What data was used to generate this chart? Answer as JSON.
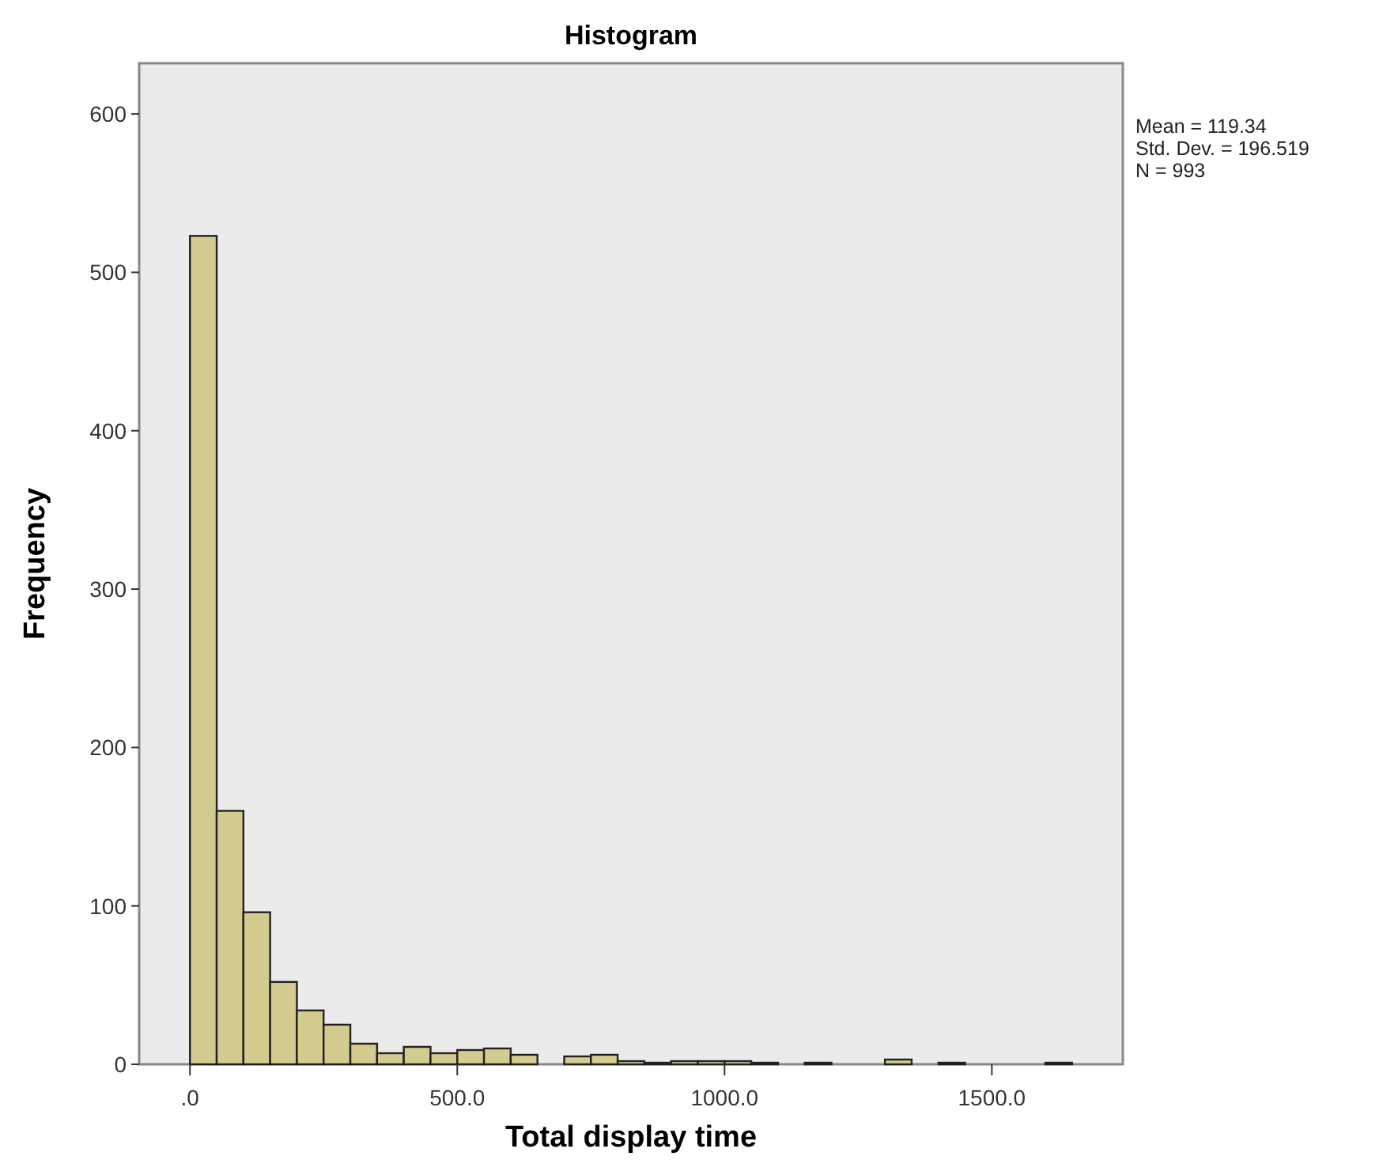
{
  "chart_data": {
    "type": "histogram",
    "title": "Histogram",
    "xlabel": "Total display time",
    "ylabel": "Frequency",
    "bins": [
      0,
      50,
      100,
      150,
      200,
      250,
      300,
      350,
      400,
      450,
      500,
      550,
      600,
      650,
      700,
      750,
      800,
      850,
      900,
      950,
      1000,
      1050,
      1100,
      1150,
      1200,
      1250,
      1300,
      1350,
      1400,
      1450,
      1500,
      1550,
      1600,
      1650
    ],
    "values": [
      523,
      160,
      96,
      52,
      34,
      25,
      13,
      7,
      11,
      7,
      9,
      10,
      6,
      0,
      5,
      6,
      2,
      1,
      2,
      2,
      2,
      1,
      0,
      1,
      0,
      0,
      3,
      0,
      1,
      0,
      0,
      0,
      1
    ],
    "color": "#d3cc8e",
    "xlim": [
      -95,
      1745
    ],
    "xticks": [
      {
        "value": 0,
        "label": ".0"
      },
      {
        "value": 500,
        "label": "500.0"
      },
      {
        "value": 1000,
        "label": "1000.0"
      },
      {
        "value": 1500,
        "label": "1500.0"
      }
    ],
    "ylim": [
      0,
      632
    ],
    "yticks": [
      0,
      100,
      200,
      300,
      400,
      500,
      600
    ],
    "annotations": [
      "Mean = 119.34",
      "Std. Dev. = 196.519",
      "N = 993"
    ]
  }
}
